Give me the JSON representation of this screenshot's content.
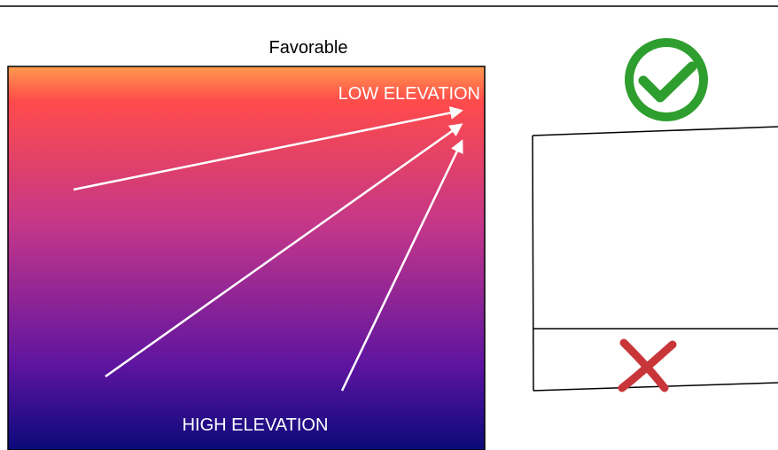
{
  "panel": {
    "title": "Favorable",
    "top_label": "LOW ELEVATION",
    "bottom_label": "HIGH ELEVATION",
    "gradient_colors": [
      "#ff9a4c",
      "#ff4b4b",
      "#c2368a",
      "#5e14a0",
      "#0a0a7a"
    ]
  },
  "status_icons": {
    "check": {
      "icon": "check-circle-icon",
      "color": "#2e9e2e"
    },
    "cross": {
      "icon": "cross-icon",
      "color": "#c8363a"
    }
  },
  "colors": {
    "arrow": "#ffffff",
    "outline": "#000000"
  }
}
